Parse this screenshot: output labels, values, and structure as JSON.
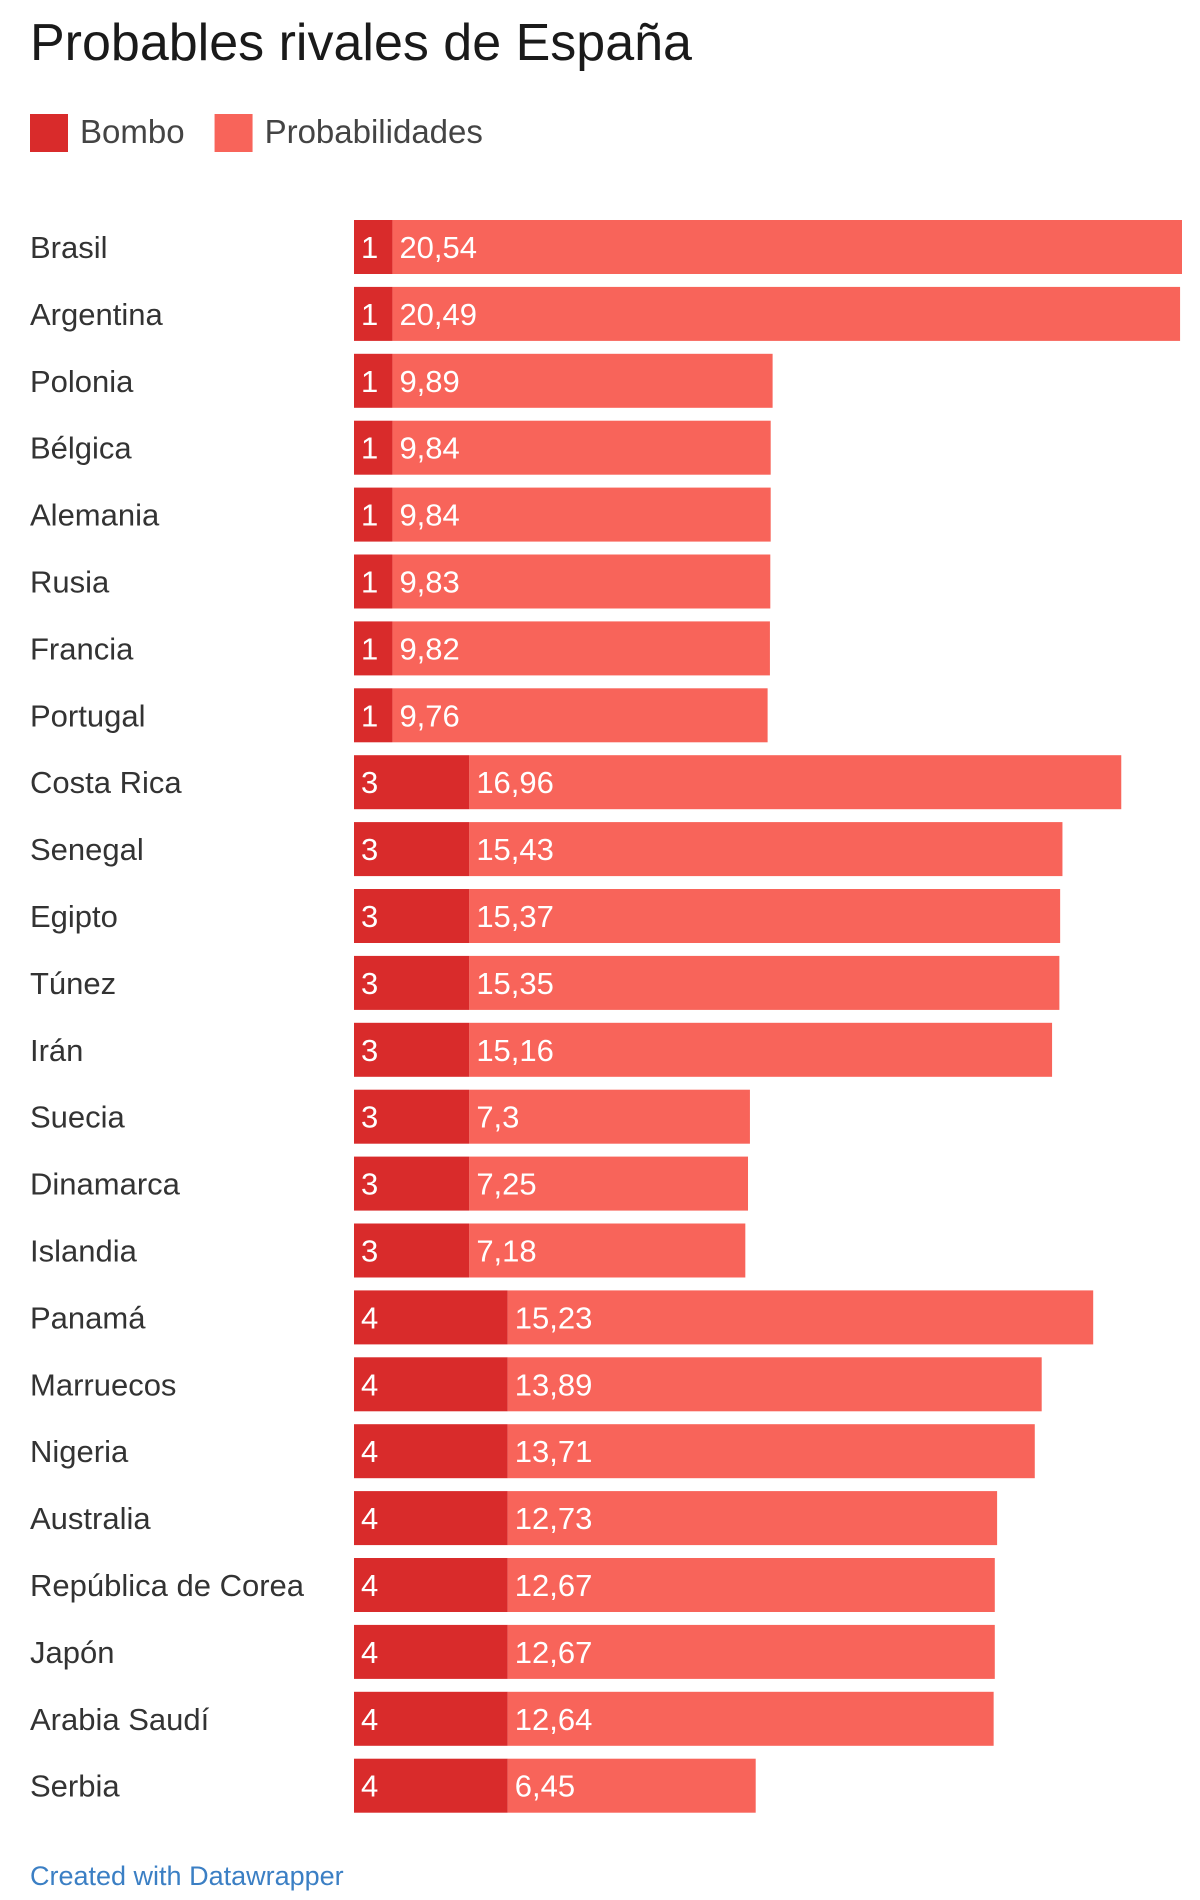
{
  "chart_data": {
    "type": "bar",
    "orientation": "horizontal",
    "stacked": true,
    "title": "Probables rivales de España",
    "legend_placement": "top-left",
    "grid": false,
    "categories": [
      "Brasil",
      "Argentina",
      "Polonia",
      "Bélgica",
      "Alemania",
      "Rusia",
      "Francia",
      "Portugal",
      "Costa Rica",
      "Senegal",
      "Egipto",
      "Túnez",
      "Irán",
      "Suecia",
      "Dinamarca",
      "Islandia",
      "Panamá",
      "Marruecos",
      "Nigeria",
      "Australia",
      "República de Corea",
      "Japón",
      "Arabia Saudí",
      "Serbia"
    ],
    "series": [
      {
        "name": "Bombo",
        "color": "#d92b2b",
        "values": [
          1,
          1,
          1,
          1,
          1,
          1,
          1,
          1,
          3,
          3,
          3,
          3,
          3,
          3,
          3,
          3,
          4,
          4,
          4,
          4,
          4,
          4,
          4,
          4
        ],
        "labels": [
          "1",
          "1",
          "1",
          "1",
          "1",
          "1",
          "1",
          "1",
          "3",
          "3",
          "3",
          "3",
          "3",
          "3",
          "3",
          "3",
          "4",
          "4",
          "4",
          "4",
          "4",
          "4",
          "4",
          "4"
        ]
      },
      {
        "name": "Probabilidades",
        "color": "#f8645a",
        "values": [
          20.54,
          20.49,
          9.89,
          9.84,
          9.84,
          9.83,
          9.82,
          9.76,
          16.96,
          15.43,
          15.37,
          15.35,
          15.16,
          7.3,
          7.25,
          7.18,
          15.23,
          13.89,
          13.71,
          12.73,
          12.67,
          12.67,
          12.64,
          6.45
        ],
        "labels": [
          "20,54",
          "20,49",
          "9,89",
          "9,84",
          "9,84",
          "9,83",
          "9,82",
          "9,76",
          "16,96",
          "15,43",
          "15,37",
          "15,35",
          "15,16",
          "7,3",
          "7,25",
          "7,18",
          "15,23",
          "13,89",
          "13,71",
          "12,73",
          "12,67",
          "12,67",
          "12,64",
          "6,45"
        ]
      }
    ],
    "xlim": [
      0,
      21.54
    ]
  },
  "footer": {
    "credit": "Created with Datawrapper"
  }
}
